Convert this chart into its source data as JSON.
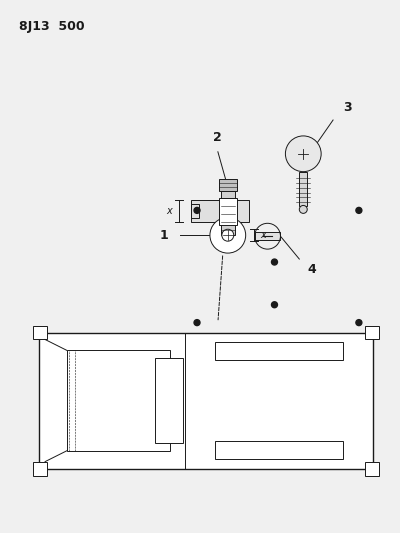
{
  "title": "8J13  500",
  "bg_color": "#f0f0f0",
  "line_color": "#1a1a1a",
  "fig_w": 4.0,
  "fig_h": 5.33
}
